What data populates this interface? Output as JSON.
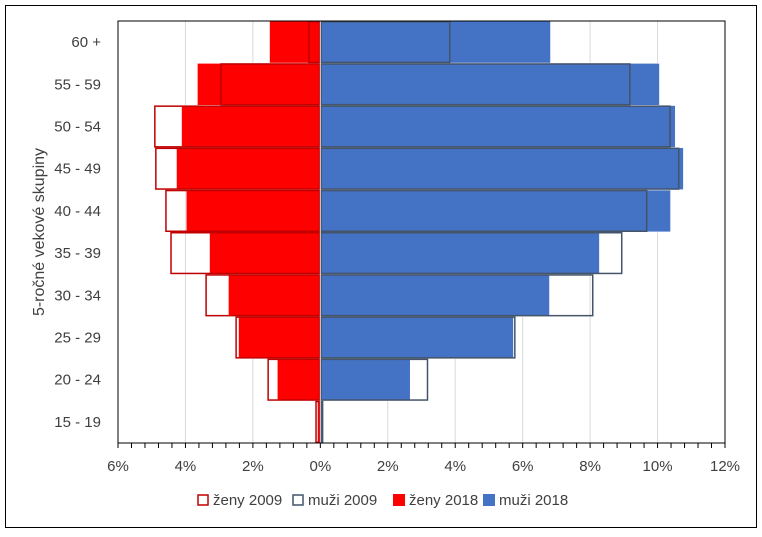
{
  "chart_data": {
    "type": "bar",
    "orientation": "horizontal-pyramid",
    "title": "",
    "ylabel": "5-ročné vekové skupiny",
    "xlabel": "",
    "xlim": [
      -6,
      12
    ],
    "x_ticks": [
      "6%",
      "4%",
      "2%",
      "0%",
      "2%",
      "4%",
      "6%",
      "8%",
      "10%",
      "12%"
    ],
    "grid": "vertical",
    "legend": "bottom",
    "categories": [
      "15 - 19",
      "20 - 24",
      "25 - 29",
      "30 - 34",
      "35 - 39",
      "40 - 44",
      "45 - 49",
      "50 - 54",
      "55 - 59",
      "60 +"
    ],
    "series": [
      {
        "name": "ženy 2009",
        "style": "outline",
        "color": "#c00000",
        "side": "left",
        "values": [
          0.15,
          1.57,
          2.52,
          3.41,
          4.45,
          4.6,
          4.9,
          4.93,
          2.97,
          0.36
        ]
      },
      {
        "name": "muži 2009",
        "style": "outline",
        "color": "#44546a",
        "side": "right",
        "values": [
          0.09,
          3.2,
          5.79,
          8.1,
          8.96,
          9.7,
          10.65,
          10.39,
          9.2,
          3.86
        ]
      },
      {
        "name": "ženy 2018",
        "style": "fill",
        "color": "#ff0000",
        "side": "left",
        "values": [
          0.09,
          1.28,
          2.43,
          2.73,
          3.29,
          3.98,
          4.27,
          4.12,
          3.65,
          1.51
        ]
      },
      {
        "name": "muži 2018",
        "style": "fill",
        "color": "#4472c4",
        "side": "right",
        "values": [
          0.06,
          2.67,
          5.73,
          6.8,
          8.28,
          10.39,
          10.77,
          10.53,
          10.06,
          6.83
        ]
      }
    ]
  }
}
